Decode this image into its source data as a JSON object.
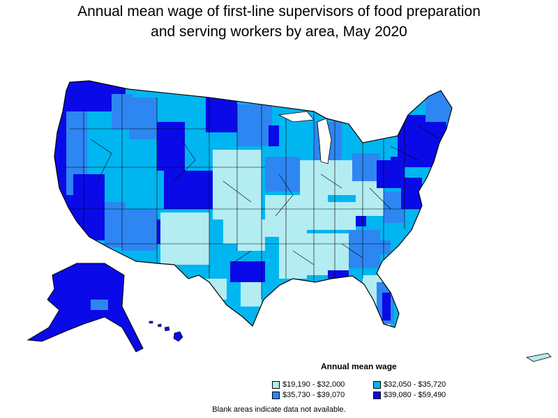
{
  "title_line1": "Annual mean wage of first-line supervisors of food preparation",
  "title_line2": "and serving workers by area, May 2020",
  "legend": {
    "title": "Annual mean wage",
    "items": [
      {
        "label": "$19,190 - $32,000",
        "color": "#b3ecf1"
      },
      {
        "label": "$32,050 - $35,720",
        "color": "#00b6f0"
      },
      {
        "label": "$35,730 - $39,070",
        "color": "#2e86f2"
      },
      {
        "label": "$39,080 - $59,490",
        "color": "#0a0ae8"
      }
    ]
  },
  "note": "Blank areas indicate data not available."
}
